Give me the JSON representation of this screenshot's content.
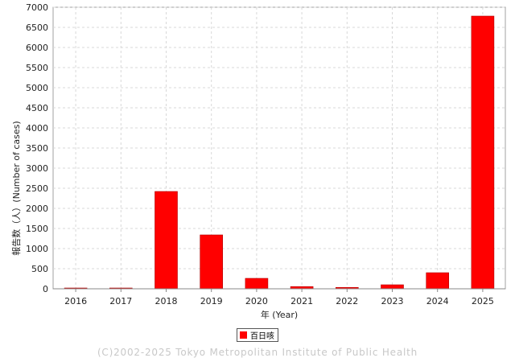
{
  "chart_data": {
    "type": "bar",
    "categories": [
      "2016",
      "2017",
      "2018",
      "2019",
      "2020",
      "2021",
      "2022",
      "2023",
      "2024",
      "2025"
    ],
    "series": [
      {
        "name": "百日咳",
        "values": [
          0,
          0,
          2420,
          1340,
          260,
          55,
          35,
          100,
          400,
          6780
        ],
        "color": "#ff0000"
      }
    ],
    "ylim": [
      0,
      7000
    ],
    "yticks": [
      0,
      500,
      1000,
      1500,
      2000,
      2500,
      3000,
      3500,
      4000,
      4500,
      5000,
      5500,
      6000,
      6500,
      7000
    ],
    "xlabel": "年 (Year)",
    "ylabel": "報告数（人）(Number of cases)",
    "grid": true,
    "legend_position": "bottom"
  },
  "footer": "(C)2002-2025 Tokyo Metropolitan Institute of Public Health"
}
